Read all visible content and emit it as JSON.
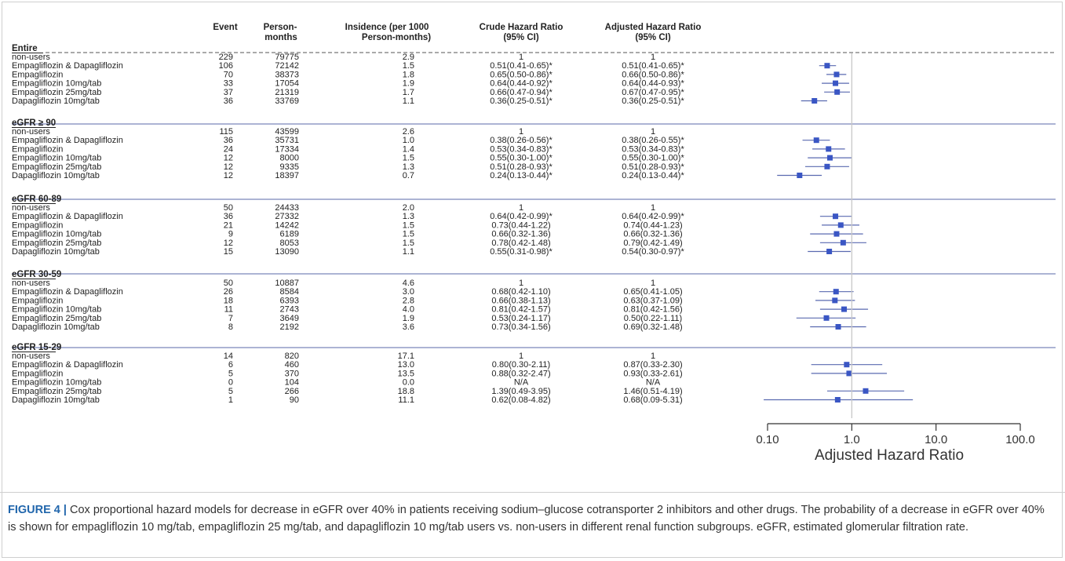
{
  "table": {
    "headers": {
      "event": "Event",
      "person_line1": "Person-",
      "person_line2": "months",
      "incidence_line1": "Insidence (per 1000",
      "incidence_line2": "Person-months)",
      "crude_line1": "Crude Hazard Ratio",
      "crude_line2": "(95% CI)",
      "adjusted_line1": "Adjusted Hazard Ratio",
      "adjusted_line2": "(95% CI)"
    },
    "sections": [
      {
        "title": "Entire",
        "rows": [
          {
            "label": "non-users",
            "event": "229",
            "person": "79775",
            "incidence": "2.9",
            "crude": "1",
            "adjusted": "1"
          },
          {
            "label": "Empagliflozin & Dapagliflozin",
            "event": "106",
            "person": "72142",
            "incidence": "1.5",
            "crude": "0.51(0.41-0.65)*",
            "adjusted": "0.51(0.41-0.65)*"
          },
          {
            "label": "Empagliflozin",
            "event": "70",
            "person": "38373",
            "incidence": "1.8",
            "crude": "0.65(0.50-0.86)*",
            "adjusted": "0.66(0.50-0.86)*"
          },
          {
            "label": "Empagliflozin 10mg/tab",
            "event": "33",
            "person": "17054",
            "incidence": "1.9",
            "crude": "0.64(0.44-0.92)*",
            "adjusted": "0.64(0.44-0.93)*"
          },
          {
            "label": "Empagliflozin 25mg/tab",
            "event": "37",
            "person": "21319",
            "incidence": "1.7",
            "crude": "0.66(0.47-0.94)*",
            "adjusted": "0.67(0.47-0.95)*"
          },
          {
            "label": "Dapagliflozin 10mg/tab",
            "event": "36",
            "person": "33769",
            "incidence": "1.1",
            "crude": "0.36(0.25-0.51)*",
            "adjusted": "0.36(0.25-0.51)*"
          }
        ]
      },
      {
        "title": "eGFR ≥ 90",
        "rows": [
          {
            "label": "non-users",
            "event": "115",
            "person": "43599",
            "incidence": "2.6",
            "crude": "1",
            "adjusted": "1"
          },
          {
            "label": "Empagliflozin & Dapagliflozin",
            "event": "36",
            "person": "35731",
            "incidence": "1.0",
            "crude": "0.38(0.26-0.56)*",
            "adjusted": "0.38(0.26-0.55)*"
          },
          {
            "label": "Empagliflozin",
            "event": "24",
            "person": "17334",
            "incidence": "1.4",
            "crude": "0.53(0.34-0.83)*",
            "adjusted": "0.53(0.34-0.83)*"
          },
          {
            "label": "Empagliflozin 10mg/tab",
            "event": "12",
            "person": "8000",
            "incidence": "1.5",
            "crude": "0.55(0.30-1.00)*",
            "adjusted": "0.55(0.30-1.00)*"
          },
          {
            "label": "Empagliflozin 25mg/tab",
            "event": "12",
            "person": "9335",
            "incidence": "1.3",
            "crude": "0.51(0.28-0.93)*",
            "adjusted": "0.51(0.28-0.93)*"
          },
          {
            "label": "Dapagliflozin 10mg/tab",
            "event": "12",
            "person": "18397",
            "incidence": "0.7",
            "crude": "0.24(0.13-0.44)*",
            "adjusted": "0.24(0.13-0.44)*"
          }
        ]
      },
      {
        "title": "eGFR 60-89",
        "rows": [
          {
            "label": "non-users",
            "event": "50",
            "person": "24433",
            "incidence": "2.0",
            "crude": "1",
            "adjusted": "1"
          },
          {
            "label": "Empagliflozin & Dapagliflozin",
            "event": "36",
            "person": "27332",
            "incidence": "1.3",
            "crude": "0.64(0.42-0.99)*",
            "adjusted": "0.64(0.42-0.99)*"
          },
          {
            "label": "Empagliflozin",
            "event": "21",
            "person": "14242",
            "incidence": "1.5",
            "crude": "0.73(0.44-1.22)",
            "adjusted": "0.74(0.44-1.23)"
          },
          {
            "label": "Empagliflozin 10mg/tab",
            "event": "9",
            "person": "6189",
            "incidence": "1.5",
            "crude": "0.66(0.32-1.36)",
            "adjusted": "0.66(0.32-1.36)"
          },
          {
            "label": "Empagliflozin 25mg/tab",
            "event": "12",
            "person": "8053",
            "incidence": "1.5",
            "crude": "0.78(0.42-1.48)",
            "adjusted": "0.79(0.42-1.49)"
          },
          {
            "label": "Dapagliflozin 10mg/tab",
            "event": "15",
            "person": "13090",
            "incidence": "1.1",
            "crude": "0.55(0.31-0.98)*",
            "adjusted": "0.54(0.30-0.97)*"
          }
        ]
      },
      {
        "title": "eGFR 30-59",
        "rows": [
          {
            "label": "non-users",
            "event": "50",
            "person": "10887",
            "incidence": "4.6",
            "crude": "1",
            "adjusted": "1"
          },
          {
            "label": "Empagliflozin & Dapagliflozin",
            "event": "26",
            "person": "8584",
            "incidence": "3.0",
            "crude": "0.68(0.42-1.10)",
            "adjusted": "0.65(0.41-1.05)"
          },
          {
            "label": "Empagliflozin",
            "event": "18",
            "person": "6393",
            "incidence": "2.8",
            "crude": "0.66(0.38-1.13)",
            "adjusted": "0.63(0.37-1.09)"
          },
          {
            "label": "Empagliflozin 10mg/tab",
            "event": "11",
            "person": "2743",
            "incidence": "4.0",
            "crude": "0.81(0.42-1.57)",
            "adjusted": "0.81(0.42-1.56)"
          },
          {
            "label": "Empagliflozin 25mg/tab",
            "event": "7",
            "person": "3649",
            "incidence": "1.9",
            "crude": "0.53(0.24-1.17)",
            "adjusted": "0.50(0.22-1.11)"
          },
          {
            "label": "Dapagliflozin 10mg/tab",
            "event": "8",
            "person": "2192",
            "incidence": "3.6",
            "crude": "0.73(0.34-1.56)",
            "adjusted": "0.69(0.32-1.48)"
          }
        ]
      },
      {
        "title": "eGFR 15-29",
        "rows": [
          {
            "label": "non-users",
            "event": "14",
            "person": "820",
            "incidence": "17.1",
            "crude": "1",
            "adjusted": "1"
          },
          {
            "label": "Empagliflozin & Dapagliflozin",
            "event": "6",
            "person": "460",
            "incidence": "13.0",
            "crude": "0.80(0.30-2.11)",
            "adjusted": "0.87(0.33-2.30)"
          },
          {
            "label": "Empagliflozin",
            "event": "5",
            "person": "370",
            "incidence": "13.5",
            "crude": "0.88(0.32-2.47)",
            "adjusted": "0.93(0.33-2.61)"
          },
          {
            "label": "Empagliflozin 10mg/tab",
            "event": "0",
            "person": "104",
            "incidence": "0.0",
            "crude": "N/A",
            "adjusted": "N/A"
          },
          {
            "label": "Empagliflozin 25mg/tab",
            "event": "5",
            "person": "266",
            "incidence": "18.8",
            "crude": "1.39(0.49-3.95)",
            "adjusted": "1.46(0.51-4.19)"
          },
          {
            "label": "Dapagliflozin 10mg/tab",
            "event": "1",
            "person": "90",
            "incidence": "11.1",
            "crude": "0.62(0.08-4.82)",
            "adjusted": "0.68(0.09-5.31)"
          }
        ]
      }
    ]
  },
  "chart_data": {
    "type": "scatter",
    "subtype": "forest",
    "xlabel": "Adjusted Hazard Ratio",
    "xscale": "log",
    "xlim": [
      0.1,
      100
    ],
    "xticks": [
      "0.10",
      "1.0",
      "10.0",
      "100.0"
    ],
    "reference_line": 1,
    "marker_color": "#3a56c4",
    "ci_color": "#5a6ab0",
    "sections": [
      {
        "title": "Entire",
        "points": [
          {
            "label": "Empagliflozin & Dapagliflozin",
            "hr": 0.51,
            "lo": 0.41,
            "hi": 0.65
          },
          {
            "label": "Empagliflozin",
            "hr": 0.66,
            "lo": 0.5,
            "hi": 0.86
          },
          {
            "label": "Empagliflozin 10mg/tab",
            "hr": 0.64,
            "lo": 0.44,
            "hi": 0.93
          },
          {
            "label": "Empagliflozin 25mg/tab",
            "hr": 0.67,
            "lo": 0.47,
            "hi": 0.95
          },
          {
            "label": "Dapagliflozin 10mg/tab",
            "hr": 0.36,
            "lo": 0.25,
            "hi": 0.51
          }
        ]
      },
      {
        "title": "eGFR ≥ 90",
        "points": [
          {
            "label": "Empagliflozin & Dapagliflozin",
            "hr": 0.38,
            "lo": 0.26,
            "hi": 0.55
          },
          {
            "label": "Empagliflozin",
            "hr": 0.53,
            "lo": 0.34,
            "hi": 0.83
          },
          {
            "label": "Empagliflozin 10mg/tab",
            "hr": 0.55,
            "lo": 0.3,
            "hi": 1.0
          },
          {
            "label": "Empagliflozin 25mg/tab",
            "hr": 0.51,
            "lo": 0.28,
            "hi": 0.93
          },
          {
            "label": "Dapagliflozin 10mg/tab",
            "hr": 0.24,
            "lo": 0.13,
            "hi": 0.44
          }
        ]
      },
      {
        "title": "eGFR 60-89",
        "points": [
          {
            "label": "Empagliflozin & Dapagliflozin",
            "hr": 0.64,
            "lo": 0.42,
            "hi": 0.99
          },
          {
            "label": "Empagliflozin",
            "hr": 0.74,
            "lo": 0.44,
            "hi": 1.23
          },
          {
            "label": "Empagliflozin 10mg/tab",
            "hr": 0.66,
            "lo": 0.32,
            "hi": 1.36
          },
          {
            "label": "Empagliflozin 25mg/tab",
            "hr": 0.79,
            "lo": 0.42,
            "hi": 1.49
          },
          {
            "label": "Dapagliflozin 10mg/tab",
            "hr": 0.54,
            "lo": 0.3,
            "hi": 0.97
          }
        ]
      },
      {
        "title": "eGFR 30-59",
        "points": [
          {
            "label": "Empagliflozin & Dapagliflozin",
            "hr": 0.65,
            "lo": 0.41,
            "hi": 1.05
          },
          {
            "label": "Empagliflozin",
            "hr": 0.63,
            "lo": 0.37,
            "hi": 1.09
          },
          {
            "label": "Empagliflozin 10mg/tab",
            "hr": 0.81,
            "lo": 0.42,
            "hi": 1.56
          },
          {
            "label": "Empagliflozin 25mg/tab",
            "hr": 0.5,
            "lo": 0.22,
            "hi": 1.11
          },
          {
            "label": "Dapagliflozin 10mg/tab",
            "hr": 0.69,
            "lo": 0.32,
            "hi": 1.48
          }
        ]
      },
      {
        "title": "eGFR 15-29",
        "points": [
          {
            "label": "Empagliflozin & Dapagliflozin",
            "hr": 0.87,
            "lo": 0.33,
            "hi": 2.3
          },
          {
            "label": "Empagliflozin",
            "hr": 0.93,
            "lo": 0.33,
            "hi": 2.61
          },
          {
            "label": "Empagliflozin 10mg/tab",
            "hr": null,
            "lo": null,
            "hi": null
          },
          {
            "label": "Empagliflozin 25mg/tab",
            "hr": 1.46,
            "lo": 0.51,
            "hi": 4.19
          },
          {
            "label": "Dapagliflozin 10mg/tab",
            "hr": 0.68,
            "lo": 0.09,
            "hi": 5.31
          }
        ]
      }
    ]
  },
  "caption": {
    "label": "FIGURE 4",
    "separator": "|",
    "text": "Cox proportional hazard models for decrease in eGFR over 40% in patients receiving sodium–glucose cotransporter 2 inhibitors and other drugs. The probability of a decrease in eGFR over 40% is shown for empagliflozin 10 mg/tab, empagliflozin 25 mg/tab, and dapagliflozin 10 mg/tab users vs. non-users in different renal function subgroups. eGFR, estimated glomerular filtration rate."
  }
}
